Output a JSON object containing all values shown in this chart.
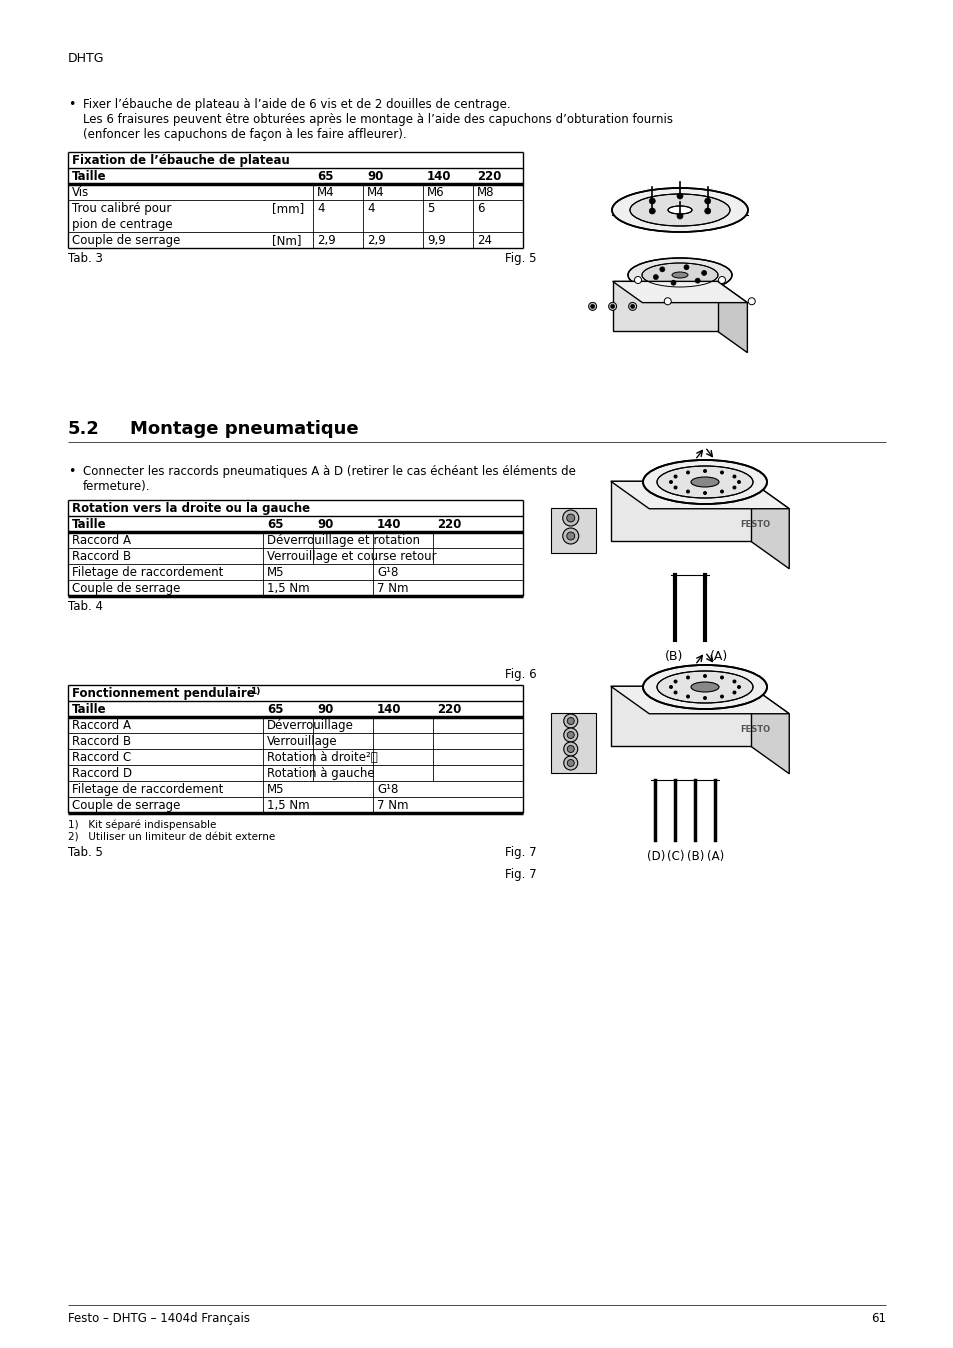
{
  "page_bg": "#ffffff",
  "header_text": "DHTG",
  "footer_text": "Festo – DHTG – 1404d Français",
  "footer_page": "61",
  "section_num": "5.2",
  "section_title": "Montage pneumatique",
  "bullet1_line1": "Fixer l’ébauche de plateau à l’aide de 6 vis et de 2 douilles de centrage.",
  "bullet1_line2": "Les 6 fraisures peuvent être obturées après le montage à l’aide des capuchons d’obturation fournis",
  "bullet1_line3": "(enfoncer les capuchons de façon à les faire affleurer).",
  "bullet2_line1": "Connecter les raccords pneumatiques A à D (retirer le cas échéant les éléments de",
  "bullet2_line2": "fermeture).",
  "table1_title": "Fixation de l’ébauche de plateau",
  "tab3": "Tab. 3",
  "fig5": "Fig. 5",
  "table2_title": "Rotation vers la droite ou la gauche",
  "tab4": "Tab. 4",
  "fig6": "Fig. 6",
  "table3_title_main": "Fonctionnement pendulaire",
  "table3_title_super": "1)",
  "footnote1": "1)   Kit séparé indispensable",
  "footnote2": "2)   Utiliser un limiteur de débit externe",
  "tab5": "Tab. 5",
  "fig7": "Fig. 7",
  "fig7_labels": [
    "(D)",
    "(C)",
    "(B)",
    "(A)"
  ],
  "fig6_labels": [
    "(B)",
    "(A)"
  ],
  "G18": "G¹8"
}
